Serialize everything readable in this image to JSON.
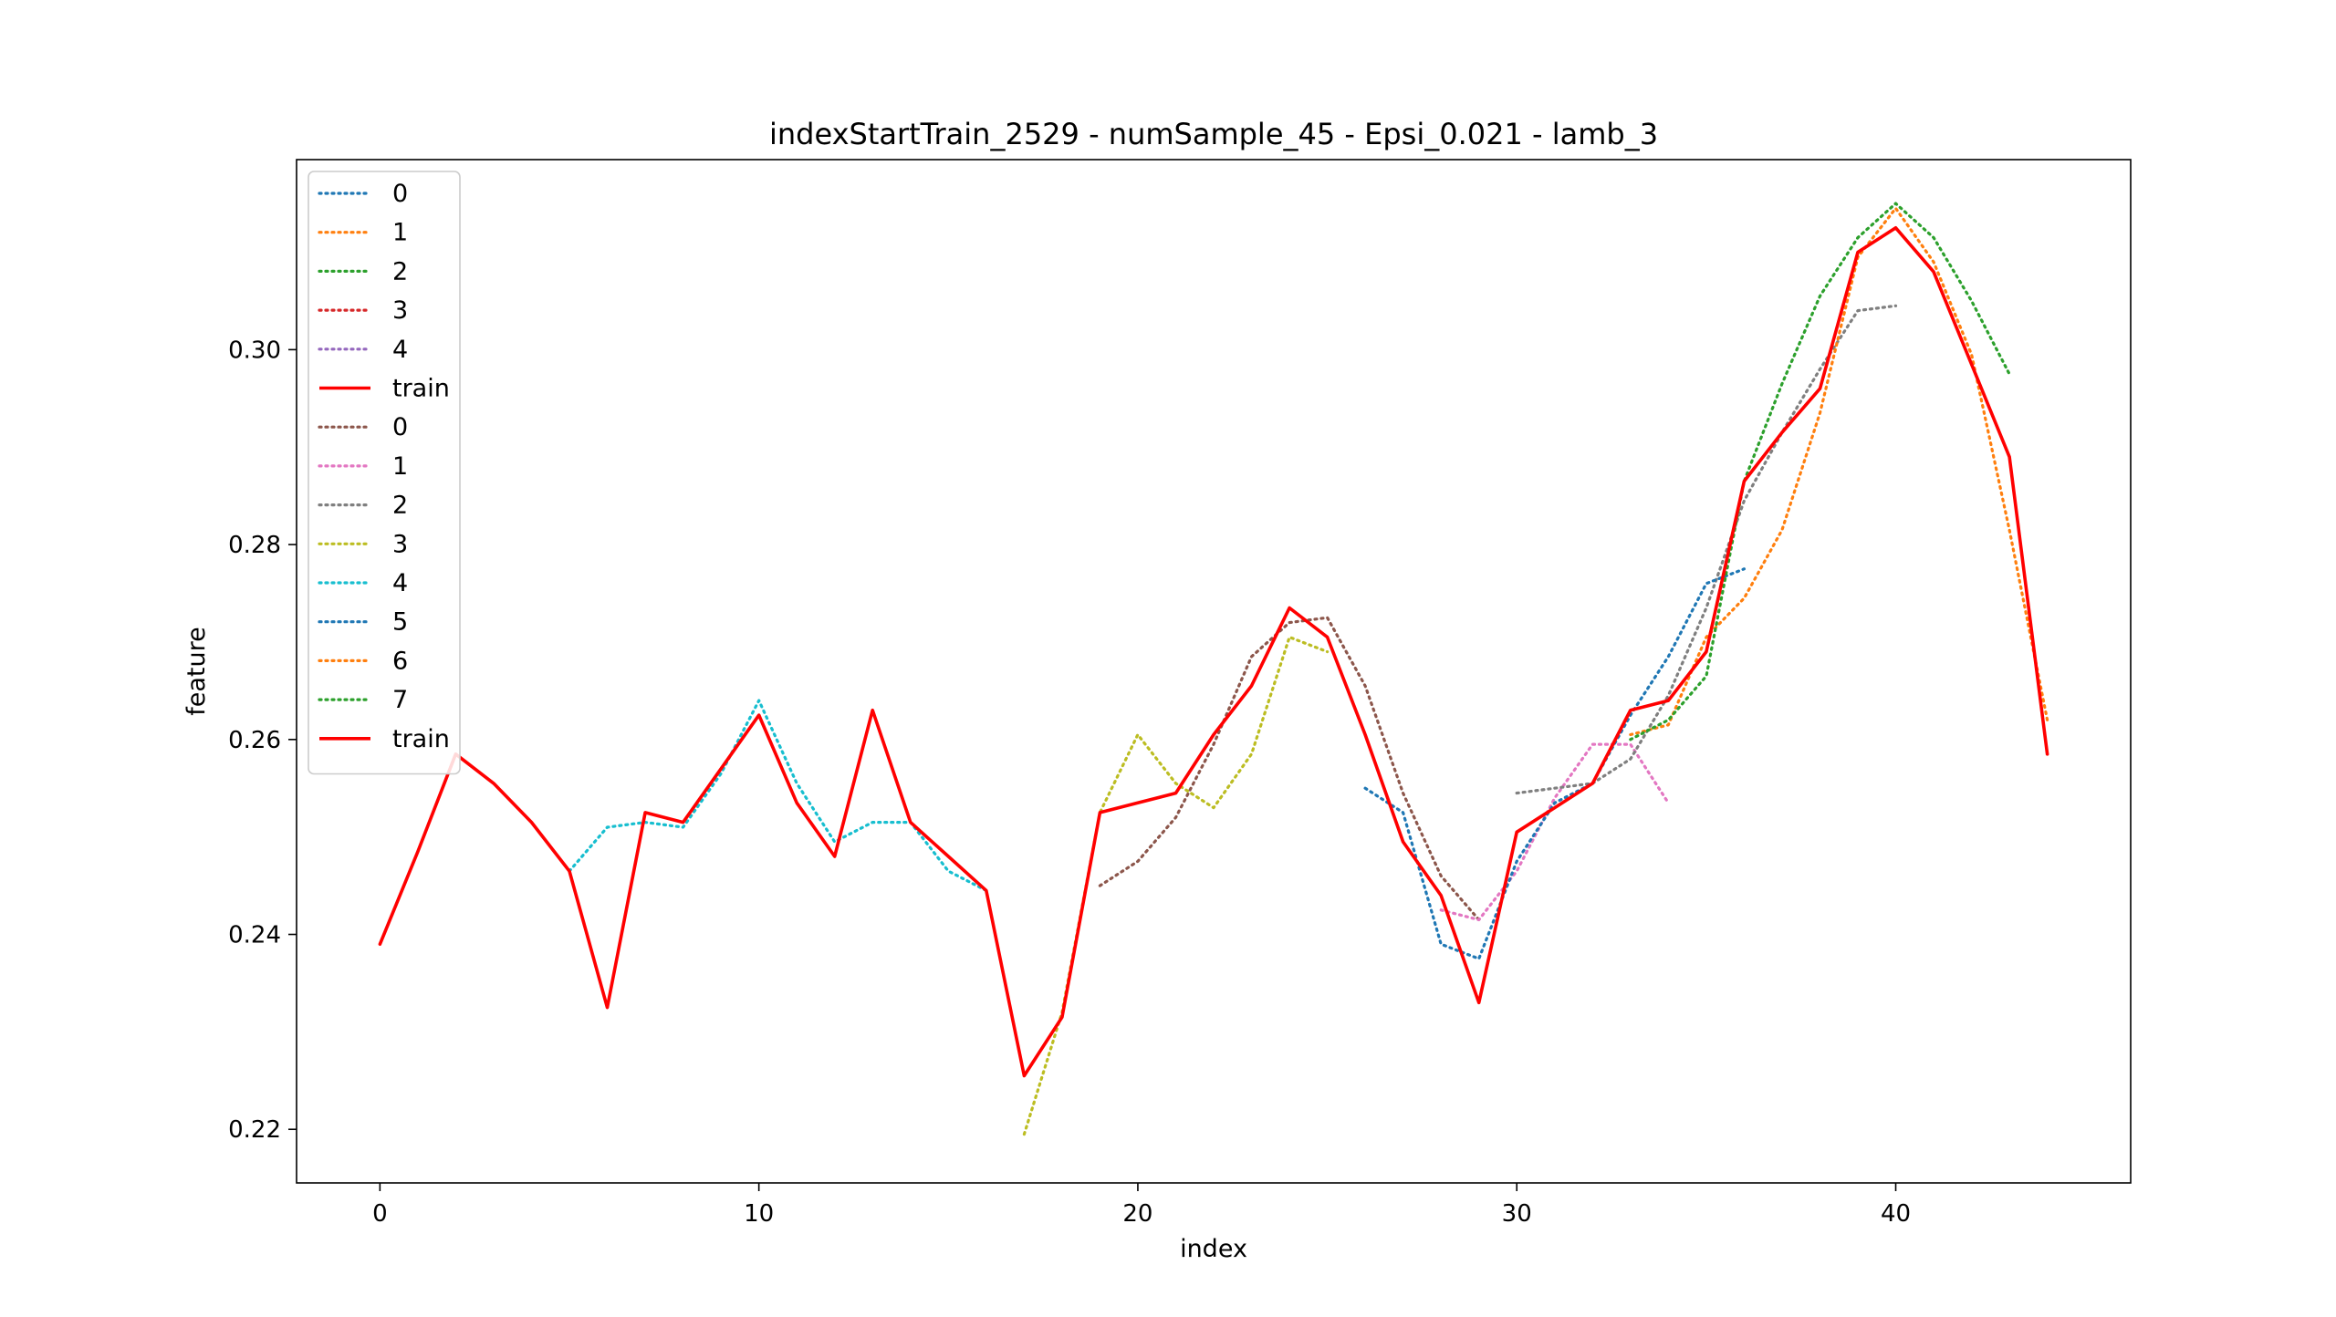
{
  "chart_data": {
    "type": "line",
    "title": "indexStartTrain_2529 - numSample_45 - Epsi_0.021 - lamb_3",
    "xlabel": "index",
    "ylabel": "feature",
    "xlim": [
      -2.2,
      46.2
    ],
    "ylim": [
      0.2145,
      0.3195
    ],
    "xticks": [
      0,
      10,
      20,
      30,
      40
    ],
    "xtick_labels": [
      "0",
      "10",
      "20",
      "30",
      "40"
    ],
    "yticks": [
      0.22,
      0.24,
      0.26,
      0.28,
      0.3
    ],
    "ytick_labels": [
      "0.22",
      "0.24",
      "0.26",
      "0.28",
      "0.30"
    ],
    "grid": false,
    "legend_position": "upper-left",
    "series": [
      {
        "name": "0",
        "color": "#1f77b4",
        "style": "dotted",
        "x": [],
        "y": []
      },
      {
        "name": "1",
        "color": "#ff7f0e",
        "style": "dotted",
        "x": [],
        "y": []
      },
      {
        "name": "2",
        "color": "#2ca02c",
        "style": "dotted",
        "x": [],
        "y": []
      },
      {
        "name": "3",
        "color": "#d62728",
        "style": "dotted",
        "x": [],
        "y": []
      },
      {
        "name": "4",
        "color": "#9467bd",
        "style": "dotted",
        "x": [],
        "y": []
      },
      {
        "name": "train",
        "color": "#ff0000",
        "style": "solid",
        "x": [],
        "y": []
      },
      {
        "name": "0",
        "color": "#8c564b",
        "style": "dotted",
        "x": [
          19,
          20,
          21,
          22,
          23,
          24,
          25,
          26,
          27,
          28,
          29
        ],
        "y": [
          0.245,
          0.2475,
          0.252,
          0.2595,
          0.2685,
          0.272,
          0.2725,
          0.2655,
          0.2545,
          0.246,
          0.2415
        ]
      },
      {
        "name": "1",
        "color": "#e377c2",
        "style": "dotted",
        "x": [
          28,
          29,
          30,
          31,
          32,
          33,
          34
        ],
        "y": [
          0.2425,
          0.2415,
          0.2465,
          0.254,
          0.2595,
          0.2595,
          0.2535
        ]
      },
      {
        "name": "2",
        "color": "#7f7f7f",
        "style": "dotted",
        "x": [
          30,
          31,
          32,
          33,
          34,
          35,
          36,
          37,
          38,
          39,
          40
        ],
        "y": [
          0.2545,
          0.255,
          0.2555,
          0.258,
          0.2645,
          0.2735,
          0.2845,
          0.2915,
          0.298,
          0.304,
          0.3045
        ]
      },
      {
        "name": "3",
        "color": "#bcbd22",
        "style": "dotted",
        "x": [
          17,
          18,
          19,
          20,
          21,
          22,
          23,
          24,
          25
        ],
        "y": [
          0.2195,
          0.232,
          0.2525,
          0.2605,
          0.2555,
          0.253,
          0.2585,
          0.2705,
          0.269
        ]
      },
      {
        "name": "4",
        "color": "#17becf",
        "style": "dotted",
        "x": [
          5,
          6,
          7,
          8,
          9,
          10,
          11,
          12,
          13,
          14,
          15,
          16
        ],
        "y": [
          0.2465,
          0.251,
          0.2515,
          0.251,
          0.2565,
          0.264,
          0.2555,
          0.2495,
          0.2515,
          0.2515,
          0.2465,
          0.2445
        ]
      },
      {
        "name": "5",
        "color": "#1f77b4",
        "style": "dotted",
        "x": [
          26,
          27,
          28,
          29,
          30,
          31,
          32,
          33,
          34,
          35,
          36
        ],
        "y": [
          0.255,
          0.2525,
          0.239,
          0.2375,
          0.2475,
          0.2535,
          0.2555,
          0.2625,
          0.2685,
          0.276,
          0.2775
        ]
      },
      {
        "name": "6",
        "color": "#ff7f0e",
        "style": "dotted",
        "x": [
          33,
          34,
          35,
          36,
          37,
          38,
          39,
          40,
          41,
          42,
          43,
          44
        ],
        "y": [
          0.2605,
          0.2615,
          0.2705,
          0.2745,
          0.2815,
          0.2935,
          0.3095,
          0.3145,
          0.309,
          0.2995,
          0.2815,
          0.262
        ]
      },
      {
        "name": "7",
        "color": "#2ca02c",
        "style": "dotted",
        "x": [
          33,
          34,
          35,
          36,
          37,
          38,
          39,
          40,
          41,
          42,
          43
        ],
        "y": [
          0.26,
          0.262,
          0.2665,
          0.2865,
          0.2965,
          0.3055,
          0.3115,
          0.315,
          0.3115,
          0.305,
          0.2975
        ]
      },
      {
        "name": "train",
        "color": "#ff0000",
        "style": "solid",
        "x": [
          0,
          1,
          2,
          3,
          4,
          5,
          6,
          7,
          8,
          9,
          10,
          11,
          12,
          13,
          14,
          15,
          16,
          17,
          18,
          19,
          20,
          21,
          22,
          23,
          24,
          25,
          26,
          27,
          28,
          29,
          30,
          31,
          32,
          33,
          34,
          35,
          36,
          37,
          38,
          39,
          40,
          41,
          42,
          43,
          44
        ],
        "y": [
          0.239,
          0.2485,
          0.2585,
          0.2555,
          0.2515,
          0.2465,
          0.2325,
          0.2525,
          0.2515,
          0.257,
          0.2625,
          0.2535,
          0.248,
          0.263,
          0.2515,
          0.248,
          0.2445,
          0.2255,
          0.2315,
          0.2525,
          0.2535,
          0.2545,
          0.2605,
          0.2655,
          0.2735,
          0.2705,
          0.2605,
          0.2495,
          0.244,
          0.233,
          0.2505,
          0.253,
          0.2555,
          0.263,
          0.264,
          0.269,
          0.2865,
          0.2915,
          0.296,
          0.31,
          0.3125,
          0.308,
          0.2985,
          0.289,
          0.2585
        ]
      }
    ]
  }
}
